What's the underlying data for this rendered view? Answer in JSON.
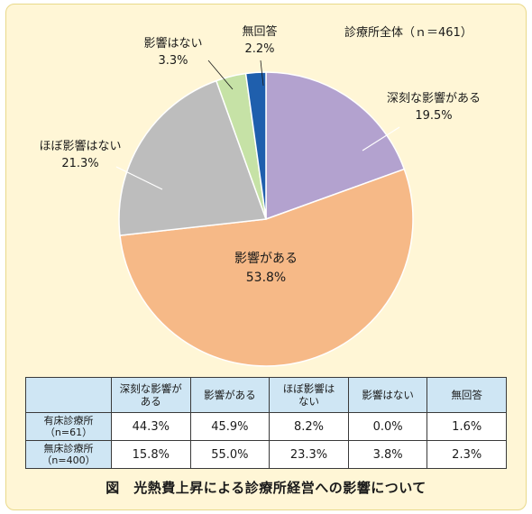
{
  "chart_data": {
    "type": "pie",
    "title": "診療所全体（ｎ＝461）",
    "slices": [
      {
        "label": "深刻な影響がある",
        "value": 19.5,
        "display": "19.5%",
        "color": "#b3a2cf"
      },
      {
        "label": "影響がある",
        "value": 53.8,
        "display": "53.8%",
        "color": "#f6b987"
      },
      {
        "label": "ほぼ影響はない",
        "value": 21.3,
        "display": "21.3%",
        "color": "#bdbdbd"
      },
      {
        "label": "影響はない",
        "value": 3.3,
        "display": "3.3%",
        "color": "#c6e2a6"
      },
      {
        "label": "無回答",
        "value": 2.2,
        "display": "2.2%",
        "color": "#1f5fad"
      }
    ]
  },
  "table": {
    "headers": [
      [
        "深刻な影響が",
        "ある"
      ],
      [
        "影響がある"
      ],
      [
        "ほぼ影響は",
        "ない"
      ],
      [
        "影響はない"
      ],
      [
        "無回答"
      ]
    ],
    "rows": [
      {
        "label": [
          "有床診療所",
          "（n=61）"
        ],
        "cells": [
          "44.3%",
          "45.9%",
          "8.2%",
          "0.0%",
          "1.6%"
        ]
      },
      {
        "label": [
          "無床診療所",
          "（n=400）"
        ],
        "cells": [
          "15.8%",
          "55.0%",
          "23.3%",
          "3.8%",
          "2.3%"
        ]
      }
    ]
  },
  "caption": "図　光熱費上昇による診療所経営への影響について"
}
